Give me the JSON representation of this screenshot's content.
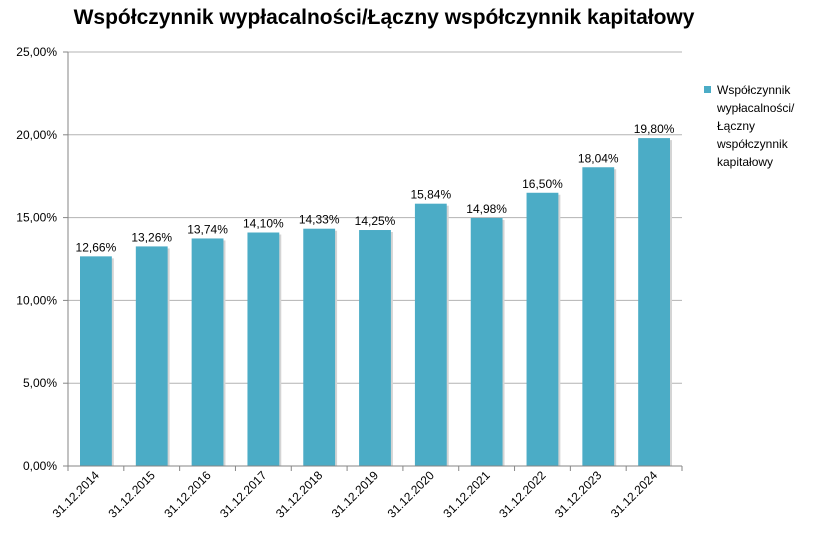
{
  "chart_data": {
    "type": "bar",
    "title": "Współczynnik wypłacalności/Łączny współczynnik kapitałowy",
    "categories": [
      "31.12.2014",
      "31.12.2015",
      "31.12.2016",
      "31.12.2017",
      "31.12.2018",
      "31.12.2019",
      "31.12.2020",
      "31.12.2021",
      "31.12.2022",
      "31.12.2023",
      "31.12.2024"
    ],
    "series": [
      {
        "name": "Współczynnik wypłacalności/ Łączny współczynnik kapitałowy",
        "values": [
          12.66,
          13.26,
          13.74,
          14.1,
          14.33,
          14.25,
          15.84,
          14.98,
          16.5,
          18.04,
          19.8
        ],
        "value_labels": [
          "12,66%",
          "13,26%",
          "13,74%",
          "14,10%",
          "14,33%",
          "14,25%",
          "15,84%",
          "14,98%",
          "16,50%",
          "18,04%",
          "19,80%"
        ]
      }
    ],
    "ylim": [
      0,
      25
    ],
    "yticks": [
      "0,00%",
      "5,00%",
      "10,00%",
      "15,00%",
      "20,00%",
      "25,00%"
    ],
    "grid": true,
    "legend_position": "right",
    "colors": {
      "bar": "#4bacc6",
      "grid": "#b3b3b3",
      "axis": "#868686"
    }
  }
}
